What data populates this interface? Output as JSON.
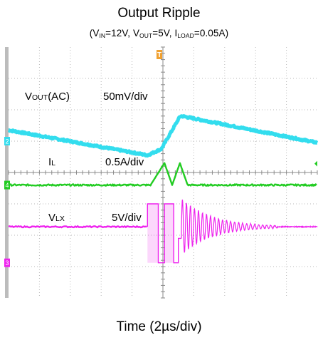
{
  "chart_data": {
    "type": "line",
    "title": "Output Ripple",
    "subtitle_parts": [
      {
        "t": "(V"
      },
      {
        "sub": "IN"
      },
      {
        "t": "=12V, V"
      },
      {
        "sub": "OUT"
      },
      {
        "t": "=5V, I"
      },
      {
        "sub": "LOAD"
      },
      {
        "t": "=0.05A)"
      }
    ],
    "xlabel": "Time (2µs/div)",
    "grid": true,
    "x_divisions": 10,
    "y_divisions": 8,
    "trigger_marker": "T",
    "channels": [
      {
        "id": "2",
        "name_main": "V",
        "name_sub": "OUT",
        "name_suffix": "(AC)",
        "scale": "50mV/div",
        "color": "#33ddee"
      },
      {
        "id": "4",
        "name_main": "I",
        "name_sub": "L",
        "name_suffix": "",
        "scale": "0.5A/div",
        "color": "#22cc22"
      },
      {
        "id": "3",
        "name_main": "V",
        "name_sub": "LX",
        "name_suffix": "",
        "scale": "5V/div",
        "color": "#ee22ee"
      }
    ],
    "series": [
      {
        "name": "VOUT(AC)",
        "unit": "div",
        "x": [
          0.0,
          4.5,
          4.95,
          5.55,
          5.6,
          10.0
        ],
        "values": [
          5.35,
          4.55,
          4.75,
          5.78,
          5.8,
          4.95
        ]
      },
      {
        "name": "IL",
        "unit": "div",
        "x": [
          0.0,
          4.6,
          5.05,
          5.3,
          5.55,
          5.8,
          10.0
        ],
        "values": [
          3.6,
          3.6,
          4.3,
          3.6,
          4.3,
          3.6,
          3.6
        ]
      },
      {
        "name": "VLX",
        "unit": "div",
        "x": [
          0.0,
          4.5,
          4.5,
          4.85,
          4.85,
          5.05,
          5.05,
          5.35,
          5.35,
          5.5,
          5.5,
          5.6
        ],
        "values": [
          2.27,
          2.27,
          3.0,
          3.0,
          1.12,
          1.12,
          3.0,
          3.0,
          1.12,
          1.12,
          1.9,
          1.9
        ],
        "ringing_after_x": 5.6,
        "ringing_amplitude_div": 0.9,
        "ringing_end_x": 8.7
      }
    ]
  }
}
